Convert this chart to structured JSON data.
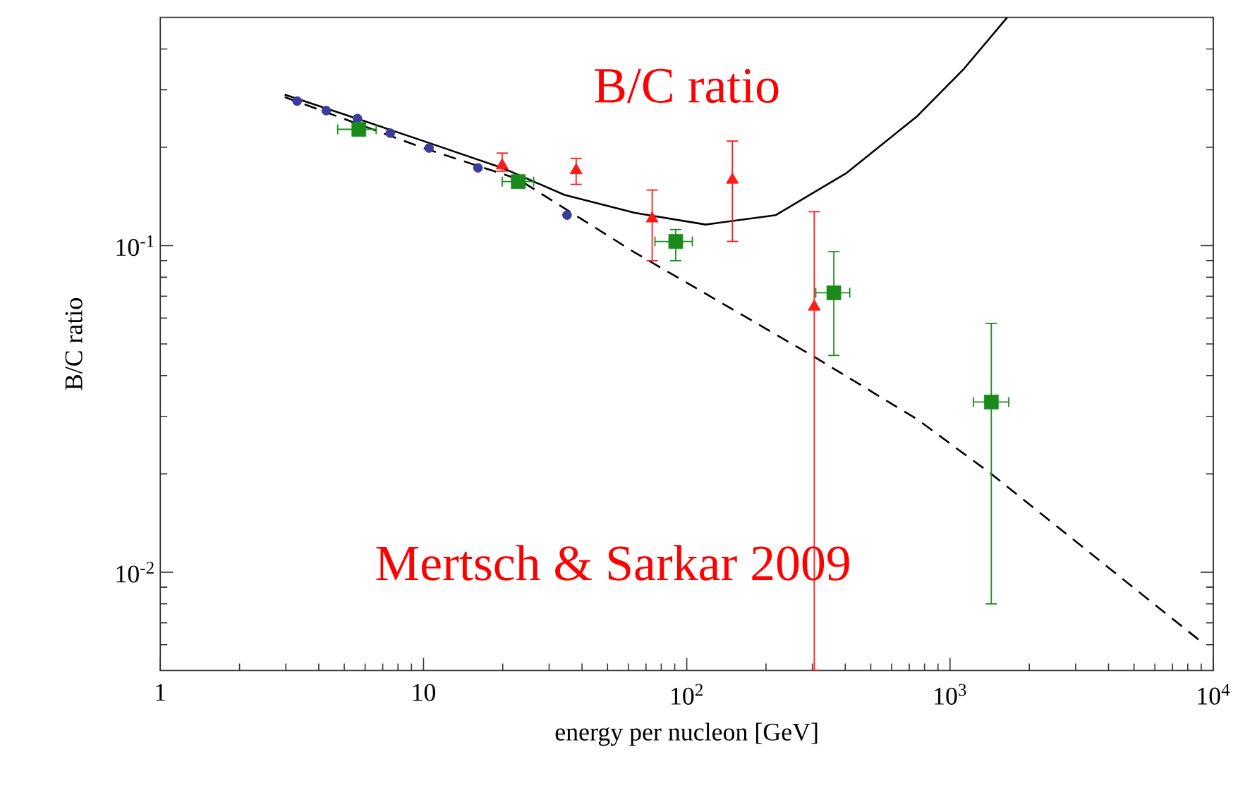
{
  "chart_data": {
    "type": "scatter",
    "title": "B/C ratio",
    "xlabel": "energy per nucleon [GeV]",
    "ylabel": "B/C ratio",
    "annotations": [
      "Mertsch & Sarkar 2009"
    ],
    "log": "xy",
    "legend": false,
    "xlim": [
      1,
      10000
    ],
    "ylim": [
      0.005,
      0.5
    ],
    "xticks": [
      1,
      10,
      {
        "value": 100,
        "label": "10$^{2}$"
      },
      {
        "value": 1000,
        "label": "10$^{3}$"
      },
      {
        "value": 10000,
        "label": "10$^{4}$"
      }
    ],
    "yticks": [
      {
        "value": 0.01,
        "label": "10$^{-2}$"
      },
      {
        "value": 0.1,
        "label": "10$^{-1}$"
      }
    ],
    "series": [
      {
        "type": "line",
        "color": "#000000",
        "line_style": "solid",
        "marker": "none",
        "x": [
          2.97,
          5.58,
          10.0,
          19.9,
          34.3,
          63.5,
          118,
          218,
          405,
          750,
          1130,
          1650
        ],
        "values": [
          0.29,
          0.245,
          0.209,
          0.173,
          0.143,
          0.126,
          0.116,
          0.124,
          0.167,
          0.249,
          0.348,
          0.5
        ]
      },
      {
        "type": "line",
        "color": "#000000",
        "line_style": "dashed",
        "marker": "none",
        "x": [
          2.97,
          10.0,
          22.8,
          63.5,
          303,
          750,
          1435,
          9200
        ],
        "values": [
          0.285,
          0.199,
          0.16,
          0.0952,
          0.0458,
          0.0294,
          0.02,
          0.00604
        ]
      },
      {
        "color": "#3c3c9c",
        "marker": "circle",
        "x": [
          3.31,
          4.27,
          5.61,
          7.48,
          10.5,
          16.1,
          35.1
        ],
        "values": [
          0.277,
          0.259,
          0.245,
          0.221,
          0.199,
          0.173,
          0.124
        ]
      },
      {
        "color": "#ff1a1a",
        "marker": "triangle",
        "x": [
          19.9,
          38,
          73.9,
          149,
          305
        ],
        "values": [
          0.176,
          0.17,
          0.121,
          0.159,
          0.065
        ],
        "errors": [
          [
            0.169,
            0.192
          ],
          [
            0.154,
            0.185
          ],
          [
            0.0899,
            0.148
          ],
          [
            0.103,
            0.209
          ],
          [
            0.005,
            0.127
          ]
        ]
      },
      {
        "color": "#1a8a1a",
        "marker": "square",
        "x": [
          5.68,
          22.9,
          90.8,
          362,
          1435
        ],
        "values": [
          0.227,
          0.157,
          0.103,
          0.0717,
          0.0332
        ],
        "errors": [
          null,
          null,
          [
            0.0899,
            0.112
          ],
          [
            0.0461,
            0.0958
          ],
          [
            0.008,
            0.0578
          ]
        ],
        "xerrors": [
          [
            4.72,
            6.61
          ],
          [
            19.9,
            26.2
          ],
          [
            75.7,
            105
          ],
          [
            309,
            416
          ],
          [
            1227,
            1671
          ]
        ]
      }
    ]
  }
}
